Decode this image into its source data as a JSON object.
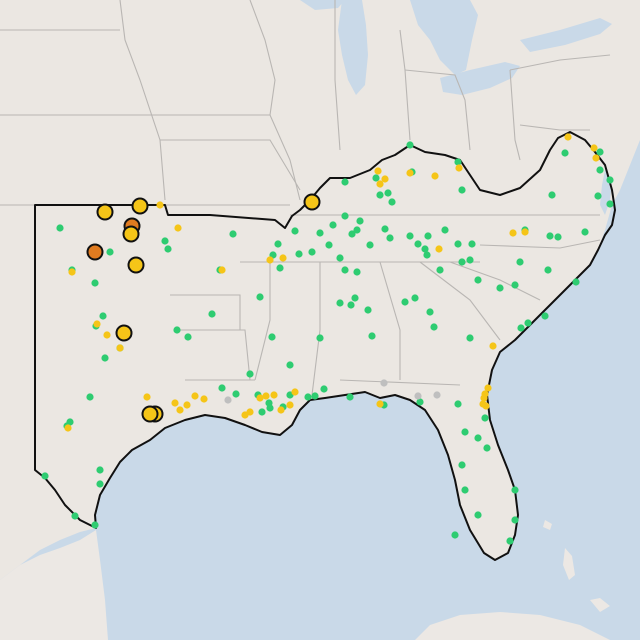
{
  "map": {
    "colors": {
      "water": "#c9d9e8",
      "land": "#ebe7e2",
      "state_border": "#b9b6b3",
      "region_outline": "#111111",
      "station_green": "#2ecc71",
      "station_yellow": "#f5c518",
      "station_gray": "#bfbfbf",
      "alert_yellow": "#f5c518",
      "alert_orange": "#e07b20"
    },
    "marker_types": [
      "small-dot",
      "large-ringed-circle"
    ]
  }
}
